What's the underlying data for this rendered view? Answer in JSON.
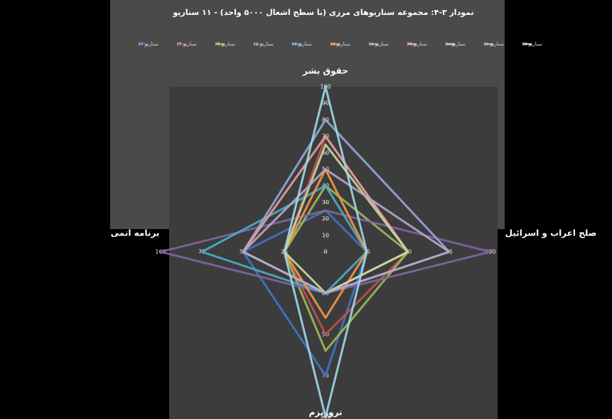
{
  "chart_data": {
    "type": "radar",
    "title": "نمودار ۳-۴: مجموعه سناریوهای مرزی (با سطح اشغال ۵۰۰۰ واحد) - ۱۱ سناریو",
    "categories": [
      "حقوق بشر",
      "صلح اعراب و اسرائیل",
      "تروریزم",
      "برنامه اتمی"
    ],
    "rlim": [
      0,
      100
    ],
    "rticks": [
      0,
      10,
      20,
      30,
      40,
      50,
      60,
      70,
      80,
      90,
      100
    ],
    "side_ticks": [
      25,
      50,
      75,
      100
    ],
    "series": [
      {
        "name": "سناریو ۶۲",
        "color": "#4472c4",
        "values": [
          25,
          25,
          75,
          50
        ]
      },
      {
        "name": "سناریو ۶۳",
        "color": "#c0504d",
        "values": [
          70,
          50,
          50,
          25
        ]
      },
      {
        "name": "سناریو ۶۴",
        "color": "#9bbb59",
        "values": [
          40,
          50,
          60,
          25
        ]
      },
      {
        "name": "سناریو ۶۵",
        "color": "#8064a2",
        "values": [
          25,
          100,
          25,
          100
        ]
      },
      {
        "name": "سناریو ۶۶",
        "color": "#4bacc6",
        "values": [
          40,
          25,
          25,
          75
        ]
      },
      {
        "name": "سناریو ۶۷",
        "color": "#f79646",
        "values": [
          50,
          25,
          40,
          25
        ]
      },
      {
        "name": "سناریو ۶۸",
        "color": "#95a7d6",
        "values": [
          80,
          75,
          25,
          50
        ]
      },
      {
        "name": "سناریو ۶۹",
        "color": "#e6a0a0",
        "values": [
          70,
          50,
          25,
          50
        ]
      },
      {
        "name": "سناریو ۷۰",
        "color": "#c6d9a0",
        "values": [
          65,
          50,
          25,
          25
        ]
      },
      {
        "name": "سناریو ۷۱",
        "color": "#b3a8c9",
        "values": [
          50,
          75,
          25,
          50
        ]
      },
      {
        "name": "سناریو ۷۲",
        "color": "#9fd8e8",
        "values": [
          100,
          25,
          100,
          25
        ]
      }
    ]
  }
}
